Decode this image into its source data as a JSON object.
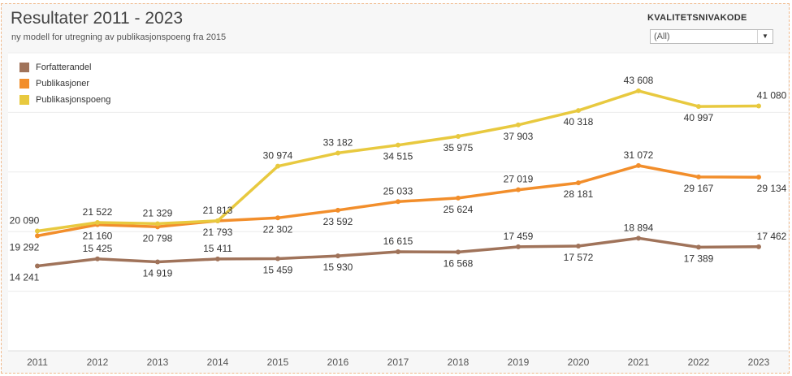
{
  "header": {
    "title": "Resultater 2011 - 2023",
    "subtitle": "ny modell for utregning av publikasjonspoeng fra 2015"
  },
  "filter": {
    "label": "KVALITETSNIVAKODE",
    "value": "(All)"
  },
  "chart_data": {
    "type": "line",
    "title": "Resultater 2011 - 2023",
    "subtitle": "ny modell for utregning av publikasjonspoeng fra 2015",
    "xlabel": "",
    "ylabel": "",
    "categories": [
      "2011",
      "2012",
      "2013",
      "2014",
      "2015",
      "2016",
      "2017",
      "2018",
      "2019",
      "2020",
      "2021",
      "2022",
      "2023"
    ],
    "ylim": [
      0,
      50000
    ],
    "grid": true,
    "legend_position": "top-left",
    "series": [
      {
        "name": "Forfatterandel",
        "color": "#a0735a",
        "values": [
          14241,
          15425,
          14919,
          15411,
          15459,
          15930,
          16615,
          16568,
          17459,
          17572,
          18894,
          17389,
          17462
        ],
        "value_labels": [
          "14 241",
          "15 425",
          "14 919",
          "15 411",
          "15 459",
          "15 930",
          "16 615",
          "16 568",
          "17 459",
          "17 572",
          "18 894",
          "17 389",
          "17 462"
        ],
        "label_pos": [
          "below",
          "above",
          "below",
          "above",
          "below",
          "below",
          "above",
          "below",
          "above",
          "below",
          "above",
          "below",
          "above"
        ]
      },
      {
        "name": "Publikasjoner",
        "color": "#f28e2b",
        "values": [
          19292,
          21160,
          20798,
          21793,
          22302,
          23592,
          25033,
          25624,
          27019,
          28181,
          31072,
          29167,
          29134
        ],
        "value_labels": [
          "19 292",
          "21 160",
          "20 798",
          "21 793",
          "22 302",
          "23 592",
          "25 033",
          "25 624",
          "27 019",
          "28 181",
          "31 072",
          "29 167",
          "29 134"
        ],
        "label_pos": [
          "below",
          "below",
          "below",
          "below",
          "below",
          "below",
          "above",
          "below",
          "above",
          "below",
          "above",
          "below",
          "below"
        ]
      },
      {
        "name": "Publikasjonspoeng",
        "color": "#e8c93f",
        "values": [
          20090,
          21522,
          21329,
          21813,
          30974,
          33182,
          34515,
          35975,
          37903,
          40318,
          43608,
          40997,
          41080
        ],
        "value_labels": [
          "20 090",
          "21 522",
          "21 329",
          "21 813",
          "30 974",
          "33 182",
          "34 515",
          "35 975",
          "37 903",
          "40 318",
          "43 608",
          "40 997",
          "41 080"
        ],
        "label_pos": [
          "above",
          "above",
          "above",
          "above",
          "above",
          "above",
          "below",
          "below",
          "below",
          "below",
          "above",
          "below",
          "above"
        ]
      }
    ]
  }
}
